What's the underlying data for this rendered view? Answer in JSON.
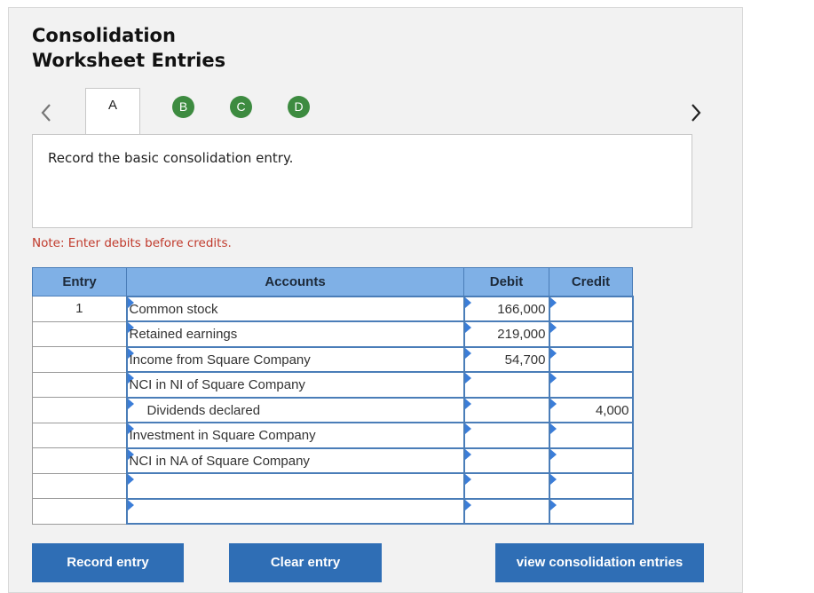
{
  "header": {
    "title_line1": "Consolidation",
    "title_line2": "Worksheet Entries"
  },
  "tabs": [
    {
      "label": "A",
      "active": true
    },
    {
      "label": "B",
      "active": false
    },
    {
      "label": "C",
      "active": false
    },
    {
      "label": "D",
      "active": false
    }
  ],
  "nav": {
    "prev_icon": "chevron-left-icon",
    "next_icon": "chevron-right-icon"
  },
  "prompt": "Record the basic consolidation entry.",
  "note": "Note: Enter debits before credits.",
  "table": {
    "headers": {
      "entry": "Entry",
      "accounts": "Accounts",
      "debit": "Debit",
      "credit": "Credit"
    },
    "rows": [
      {
        "entry": "1",
        "account": "Common stock",
        "debit": "166,000",
        "credit": ""
      },
      {
        "entry": "",
        "account": "Retained earnings",
        "debit": "219,000",
        "credit": ""
      },
      {
        "entry": "",
        "account": "Income from Square Company",
        "debit": "54,700",
        "credit": ""
      },
      {
        "entry": "",
        "account": "NCI in NI of Square Company",
        "debit": "",
        "credit": ""
      },
      {
        "entry": "",
        "account": "Dividends declared",
        "debit": "",
        "credit": "4,000"
      },
      {
        "entry": "",
        "account": "Investment in Square Company",
        "debit": "",
        "credit": ""
      },
      {
        "entry": "",
        "account": "NCI in NA of Square Company",
        "debit": "",
        "credit": ""
      },
      {
        "entry": "",
        "account": "",
        "debit": "",
        "credit": ""
      },
      {
        "entry": "",
        "account": "",
        "debit": "",
        "credit": ""
      }
    ]
  },
  "buttons": {
    "record": "Record entry",
    "clear": "Clear entry",
    "view": "view consolidation entries"
  },
  "colors": {
    "header_blue": "#7fb0e6",
    "tab_green": "#3d8b40",
    "button_blue": "#2f6eb5",
    "note_red": "#c0392b"
  }
}
